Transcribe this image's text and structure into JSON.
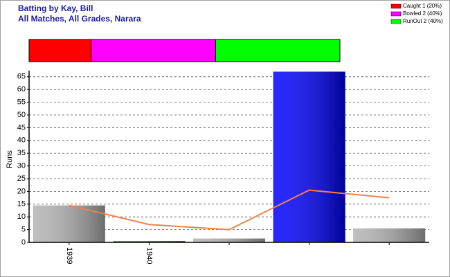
{
  "chart_data": {
    "type": "bar",
    "title": "Batting by Kay, Bill",
    "subtitle": "All Matches, All Grades, Narara",
    "y_label": "Runs",
    "categories": [
      "1939",
      "1940",
      null,
      null,
      null
    ],
    "values": [
      14.5,
      0.5,
      1.5,
      67,
      5.5
    ],
    "bar_colors": [
      "#b4b4b4",
      "#3a6a3a",
      "#b4b4b4",
      "#0000ff",
      "#b4b4b4"
    ],
    "line": {
      "color": "#f0804a",
      "values": [
        14.5,
        7,
        5,
        20.5,
        17.5
      ]
    },
    "ylim": [
      0,
      67.4
    ],
    "yticks": [
      0,
      5,
      10,
      15,
      20,
      25,
      30,
      35,
      40,
      45,
      50,
      55,
      60,
      65
    ],
    "grid": true,
    "dismissals": [
      {
        "name": "Caught 1 (20%)",
        "color": "#ff0000",
        "value": 20
      },
      {
        "name": "Bowled 2 (40%)",
        "color": "#ff00ff",
        "value": 40
      },
      {
        "name": "RunOut 2 (40%)",
        "color": "#00ff00",
        "value": 40
      }
    ]
  }
}
